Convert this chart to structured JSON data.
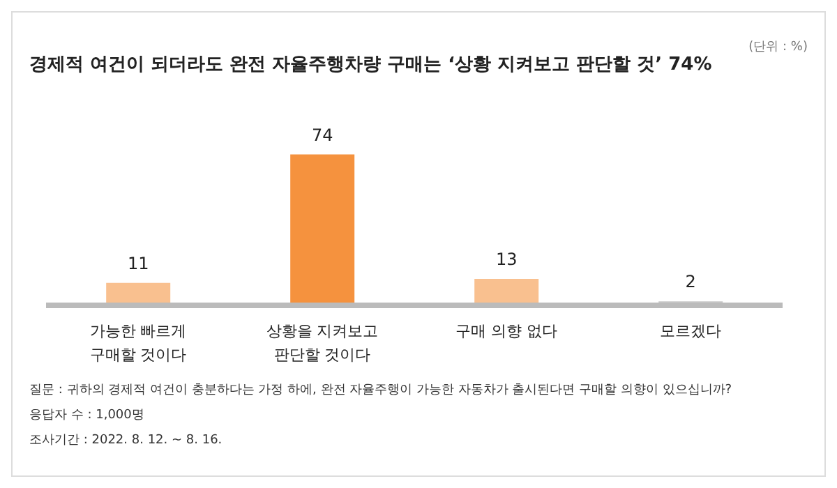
{
  "chart_data": {
    "type": "bar",
    "title": "경제적 여건이 되더라도 완전 자율주행차량 구매는 ‘상황 지켜보고 판단할 것’ 74%",
    "categories": [
      "가능한 빠르게 구매할 것이다",
      "상황을 지켜보고 판단할 것이다",
      "구매 의향 없다",
      "모르겠다"
    ],
    "values": [
      11,
      74,
      13,
      2
    ],
    "colors": [
      "#f9c08f",
      "#f5923e",
      "#f9c08f",
      "#c8c8c8"
    ],
    "data_labels": true,
    "grid": false,
    "legend": false,
    "tick_labels": "x",
    "annotations": [
      "(단위 : %)",
      "질문 : 귀하의 경제적 여건이 충분하다는 가정 하에, 완전 자율주행이 가능한 자동차가 출시된다면 구매할 의향이 있으십니까?",
      "응답자 수 : 1,000명",
      "조사기간 : 2022. 8. 12. ~ 8. 16."
    ]
  }
}
